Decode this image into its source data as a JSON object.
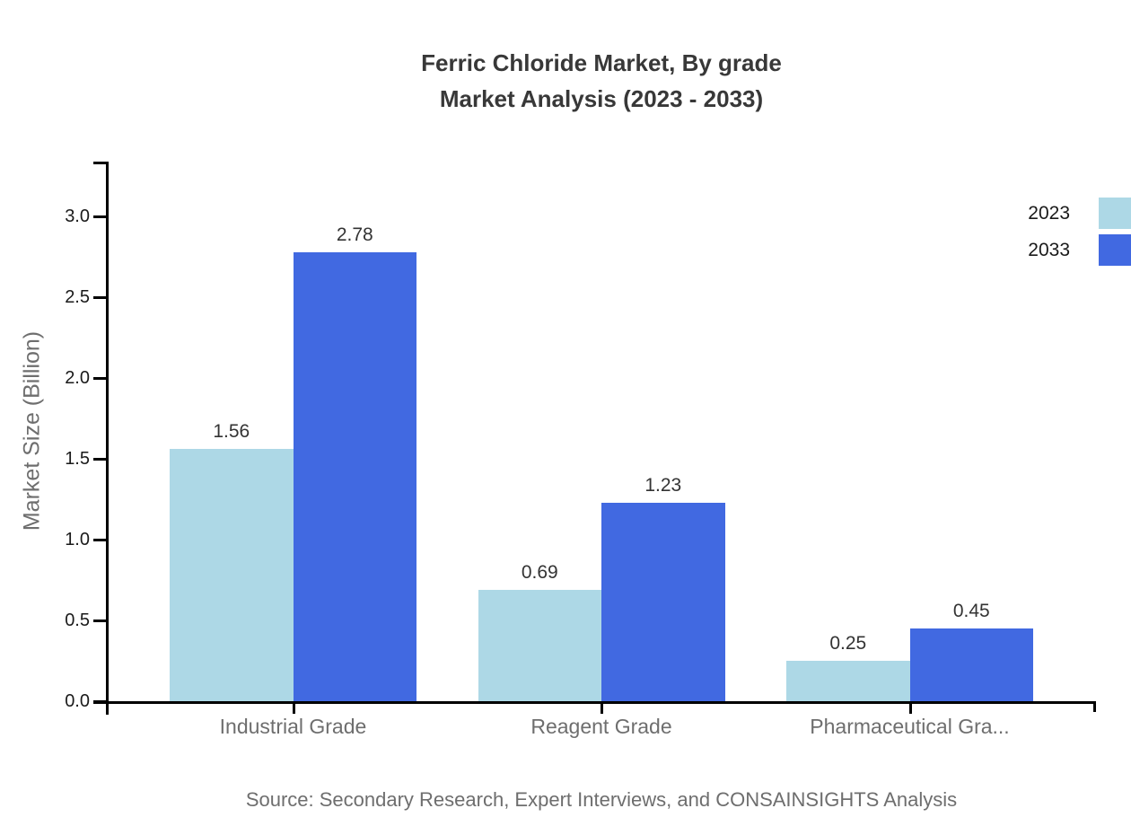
{
  "chart_data": {
    "type": "bar",
    "title_lines": [
      "Ferric Chloride Market, By grade",
      "Market Analysis (2023 - 2033)"
    ],
    "ylabel": "Market Size (Billion)",
    "xlabel": "",
    "categories": [
      "Industrial Grade",
      "Reagent Grade",
      "Pharmaceutical Gra..."
    ],
    "series": [
      {
        "name": "2023",
        "color": "#ADD8E6",
        "values": [
          1.56,
          0.69,
          0.25
        ]
      },
      {
        "name": "2033",
        "color": "#4169E1",
        "values": [
          2.78,
          1.23,
          0.45
        ]
      }
    ],
    "value_labels": [
      "1.56",
      "2.78",
      "0.69",
      "1.23",
      "0.25",
      "0.45"
    ],
    "ylim": [
      0,
      3.35
    ],
    "ytick_values": [
      0,
      0.5,
      1,
      1.5,
      2,
      2.5,
      3
    ],
    "ytick_labels": [
      "0.0",
      "0.5",
      "1.0",
      "1.5",
      "2.0",
      "2.5",
      "3.0"
    ],
    "grid": false,
    "legend_position": "top-right",
    "axis_color": "#000000",
    "source": "Source: Secondary Research, Expert Interviews, and CONSAINSIGHTS Analysis"
  }
}
